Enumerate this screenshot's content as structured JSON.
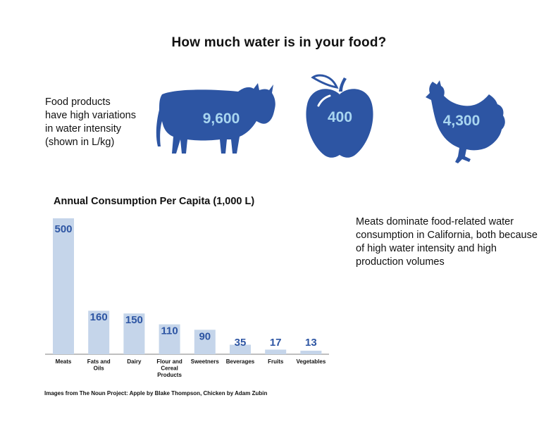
{
  "title": "How much water is in your food?",
  "intro": {
    "lines": [
      "Food products",
      "have high variations",
      "in water intensity",
      "(shown in L/kg)"
    ]
  },
  "icons": [
    {
      "name": "cow-icon",
      "value": "9,600"
    },
    {
      "name": "apple-icon",
      "value": "400"
    },
    {
      "name": "chicken-icon",
      "value": "4,300"
    }
  ],
  "note": "Meats dominate food-related water consumption in California, both because of high water intensity and high production volumes",
  "credit": "Images from The Noun Project: Apple by Blake Thompson, Chicken by Adam Zubin",
  "colors": {
    "icon": "#2d55a3",
    "icon_value": "#a9d6f0",
    "bar": "#c5d5ea",
    "data_label": "#2d55a3"
  },
  "chart_data": {
    "type": "bar",
    "title": "Annual Consumption Per Capita (1,000 L)",
    "categories": [
      [
        "Meats"
      ],
      [
        "Fats and",
        "Oils"
      ],
      [
        "Dairy"
      ],
      [
        "Flour and",
        "Cereal",
        "Products"
      ],
      [
        "Sweetners"
      ],
      [
        "Beverages"
      ],
      [
        "Fruits"
      ],
      [
        "Vegetables"
      ]
    ],
    "values": [
      500,
      160,
      150,
      110,
      90,
      35,
      17,
      13
    ],
    "xlabel": "",
    "ylabel": "",
    "ylim": [
      0,
      500
    ],
    "grid": false
  }
}
